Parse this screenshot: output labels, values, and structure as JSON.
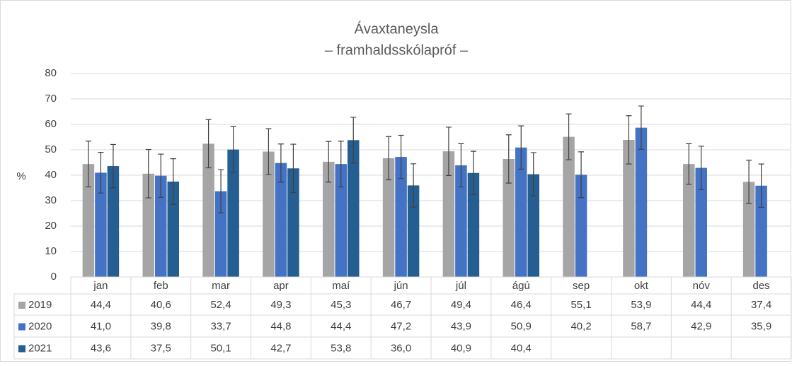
{
  "chart_data": {
    "type": "bar",
    "title": "Ávaxtaneysla",
    "subtitle": "– framhaldsskólapróf –",
    "y_label": "%",
    "categories": [
      "jan",
      "feb",
      "mar",
      "apr",
      "maí",
      "jún",
      "júl",
      "ágú",
      "sep",
      "okt",
      "nóv",
      "des"
    ],
    "ylim": [
      0,
      80
    ],
    "yticks": [
      0,
      10,
      20,
      30,
      40,
      50,
      60,
      70,
      80
    ],
    "grid": true,
    "data_table": true,
    "series": [
      {
        "name": "2019",
        "color": "#a5a5a5",
        "values": [
          44.4,
          40.6,
          52.4,
          49.3,
          45.3,
          46.7,
          49.4,
          46.4,
          55.1,
          53.9,
          44.4,
          37.4
        ],
        "value_labels": [
          "44,4",
          "40,6",
          "52,4",
          "49,3",
          "45,3",
          "46,7",
          "49,4",
          "46,4",
          "55,1",
          "53,9",
          "44,4",
          "37,4"
        ],
        "errors": [
          9,
          9.5,
          9.5,
          9,
          8,
          8.5,
          9.5,
          9.5,
          9,
          9.5,
          8,
          8.5
        ]
      },
      {
        "name": "2020",
        "color": "#4472c4",
        "values": [
          41.0,
          39.8,
          33.7,
          44.8,
          44.4,
          47.2,
          43.9,
          50.9,
          40.2,
          58.7,
          42.9,
          35.9
        ],
        "value_labels": [
          "41,0",
          "39,8",
          "33,7",
          "44,8",
          "44,4",
          "47,2",
          "43,9",
          "50,9",
          "40,2",
          "58,7",
          "42,9",
          "35,9"
        ],
        "errors": [
          8,
          8.5,
          8.5,
          7.5,
          9,
          8.5,
          8.5,
          8.5,
          9,
          8.5,
          8.5,
          8.5
        ]
      },
      {
        "name": "2021",
        "color": "#255e91",
        "values": [
          43.6,
          37.5,
          50.1,
          42.7,
          53.8,
          36.0,
          40.9,
          40.4,
          null,
          null,
          null,
          null
        ],
        "value_labels": [
          "43,6",
          "37,5",
          "50,1",
          "42,7",
          "53,8",
          "36,0",
          "40,9",
          "40,4",
          null,
          null,
          null,
          null
        ],
        "errors": [
          8.5,
          9,
          9,
          9.5,
          9,
          8.5,
          8.5,
          8.5,
          null,
          null,
          null,
          null
        ]
      }
    ]
  }
}
